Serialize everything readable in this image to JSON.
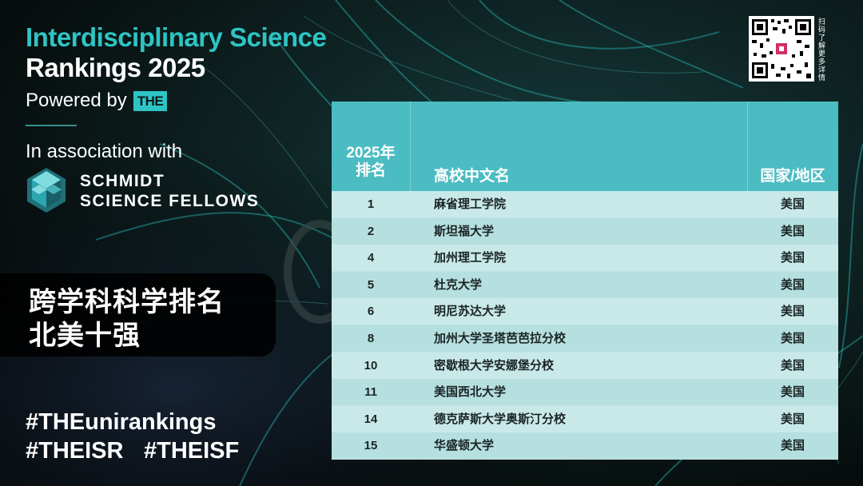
{
  "header": {
    "title_line1": "Interdisciplinary Science",
    "title_line2": "Rankings 2025",
    "powered_by": "Powered by",
    "the_logo": "THE",
    "association": "In association with",
    "partner_line1": "SCHMIDT",
    "partner_line2": "SCIENCE FELLOWS"
  },
  "headline": {
    "line1": "跨学科科学排名",
    "line2": "北美十强"
  },
  "hashtags": [
    "#THEunirankings",
    "#THEISR",
    "#THEISF"
  ],
  "qr_caption": "扫码了解更多详情",
  "colors": {
    "accent": "#2ec4c4",
    "table_header": "#4bbcc2",
    "row_light": "#c9e9e9",
    "row_dark": "#b6dfdf"
  },
  "table": {
    "headers": {
      "rank": "2025年排名",
      "name": "高校中文名",
      "country": "国家/地区"
    },
    "rows": [
      {
        "rank": "1",
        "name": "麻省理工学院",
        "country": "美国"
      },
      {
        "rank": "2",
        "name": "斯坦福大学",
        "country": "美国"
      },
      {
        "rank": "4",
        "name": "加州理工学院",
        "country": "美国"
      },
      {
        "rank": "5",
        "name": "杜克大学",
        "country": "美国"
      },
      {
        "rank": "6",
        "name": "明尼苏达大学",
        "country": "美国"
      },
      {
        "rank": "8",
        "name": "加州大学圣塔芭芭拉分校",
        "country": "美国"
      },
      {
        "rank": "10",
        "name": "密歇根大学安娜堡分校",
        "country": "美国"
      },
      {
        "rank": "11",
        "name": "美国西北大学",
        "country": "美国"
      },
      {
        "rank": "14",
        "name": "德克萨斯大学奥斯汀分校",
        "country": "美国"
      },
      {
        "rank": "15",
        "name": "华盛顿大学",
        "country": "美国"
      }
    ]
  }
}
